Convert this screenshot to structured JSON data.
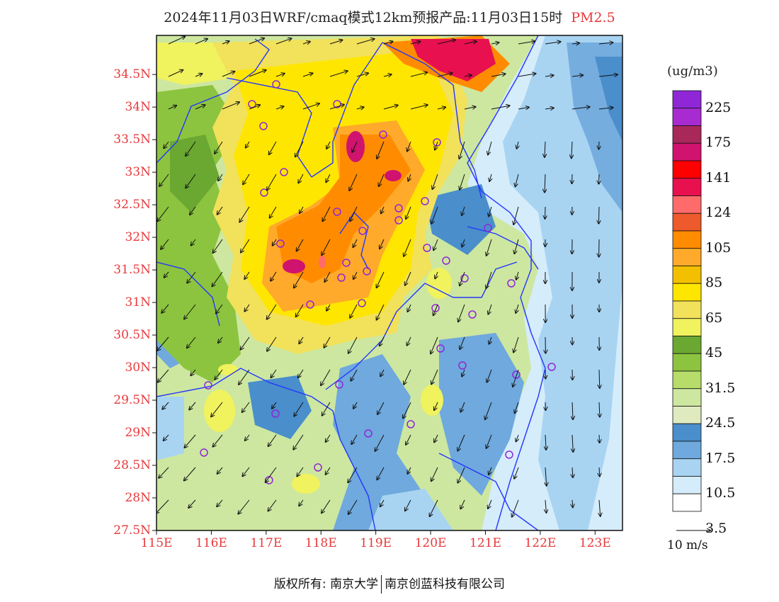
{
  "title": {
    "main": "2024年11月03日WRF/cmaq模式12km预报产品:11月03日15时",
    "variable": "PM2.5"
  },
  "map": {
    "lat_ticks": [
      "34.5N",
      "34N",
      "33.5N",
      "33N",
      "32.5N",
      "32N",
      "31.5N",
      "31N",
      "30.5N",
      "30N",
      "29.5N",
      "29N",
      "28.5N",
      "28N",
      "27.5N"
    ],
    "lon_ticks": [
      "115E",
      "116E",
      "117E",
      "118E",
      "119E",
      "120E",
      "121E",
      "122E",
      "123E"
    ],
    "extent": {
      "lon_min": 115,
      "lon_max": 123.5,
      "lat_min": 27.5,
      "lat_max": 35.1
    }
  },
  "legend": {
    "unit": "(ug/m3)",
    "labels": [
      "225",
      "175",
      "141",
      "124",
      "105",
      "85",
      "65",
      "45",
      "31.5",
      "24.5",
      "17.5",
      "10.5",
      "3.5"
    ],
    "colors": [
      "#8f27d6",
      "#a72bd0",
      "#a8285a",
      "#d0136e",
      "#ff0000",
      "#e8104f",
      "#ff6b6b",
      "#ed5a2c",
      "#ff8c00",
      "#ffaa2a",
      "#f2c000",
      "#ffe600",
      "#f2e15a",
      "#f0f25e",
      "#6aa832",
      "#8cc43f",
      "#b7dc6a",
      "#cde7a0",
      "#dfebbf",
      "#4a8ecb",
      "#6fa9dd",
      "#a8d4f2",
      "#d5ecfa",
      "#ffffff"
    ],
    "colorbar_levels": 24
  },
  "vector_key": {
    "label": "10 m/s"
  },
  "footer": {
    "left": "版权所有: 南京大学",
    "right": "南京创蓝科技有限公司"
  }
}
